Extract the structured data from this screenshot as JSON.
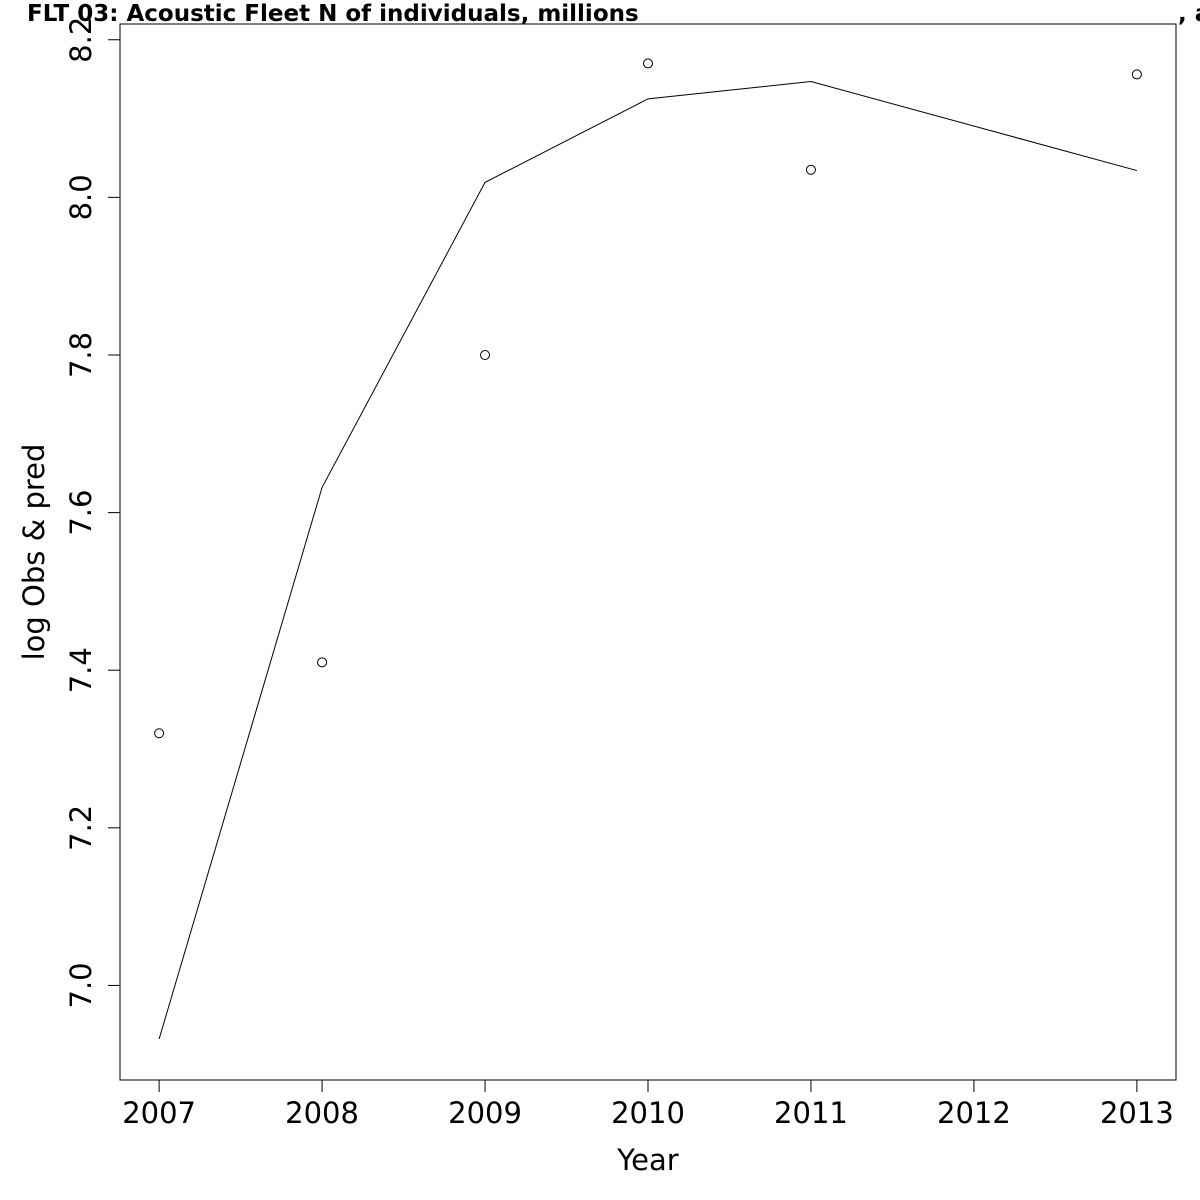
{
  "chart_data": {
    "type": "line",
    "title": "FLT 03: Acoustic Fleet   N of individuals, millions",
    "title_suffix": ", a",
    "xlabel": "Year",
    "ylabel": "log Obs & pred",
    "xlim": [
      2006.76,
      2013.24
    ],
    "ylim": [
      6.88,
      8.22
    ],
    "x_ticks": [
      2007,
      2008,
      2009,
      2010,
      2011,
      2012,
      2013
    ],
    "y_ticks": [
      7.0,
      7.2,
      7.4,
      7.6,
      7.8,
      8.0,
      8.2
    ],
    "y_tick_labels": [
      "7.0",
      "7.2",
      "7.4",
      "7.6",
      "7.8",
      "8.0",
      "8.2"
    ],
    "series": [
      {
        "style": "points",
        "x": [
          2007,
          2008,
          2009,
          2010,
          2011,
          2013
        ],
        "values": [
          7.32,
          7.41,
          7.8,
          8.17,
          8.035,
          8.156
        ]
      },
      {
        "style": "line",
        "x": [
          2007,
          2008,
          2009,
          2010,
          2011,
          2013
        ],
        "values": [
          6.932,
          7.632,
          8.019,
          8.125,
          8.147,
          8.034
        ]
      }
    ],
    "grid": false,
    "colors": {
      "line": "#000000",
      "points": "#000000",
      "axes": "#000000"
    }
  }
}
